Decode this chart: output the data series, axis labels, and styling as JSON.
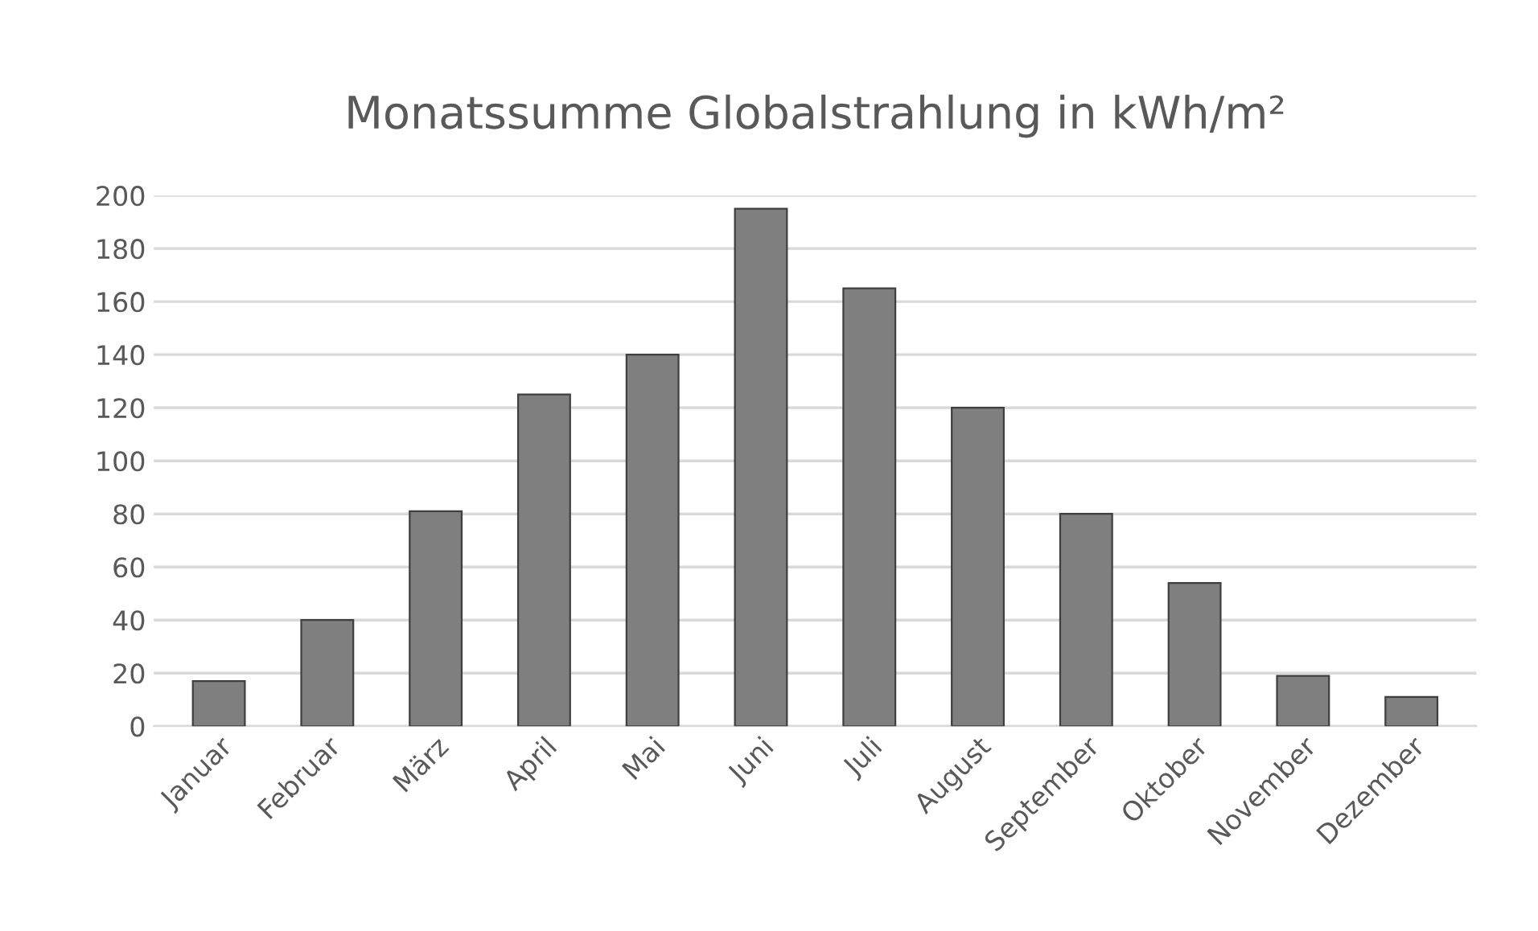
{
  "chart_data": {
    "type": "bar",
    "title": "Monatssumme Globalstrahlung in kWh/m²",
    "categories": [
      "Januar",
      "Februar",
      "März",
      "April",
      "Mai",
      "Juni",
      "Juli",
      "August",
      "September",
      "Oktober",
      "November",
      "Dezember"
    ],
    "values": [
      17,
      40,
      81,
      125,
      140,
      195,
      165,
      120,
      80,
      54,
      19,
      11
    ],
    "color": "#7f7f7f",
    "ylim": [
      0,
      200
    ],
    "yticks": [
      0,
      20,
      40,
      60,
      80,
      100,
      120,
      140,
      160,
      180,
      200
    ],
    "grid": "y"
  }
}
